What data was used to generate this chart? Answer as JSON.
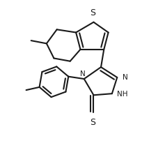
{
  "bg_color": "#ffffff",
  "line_color": "#1a1a1a",
  "line_width": 1.5,
  "font_size": 7.5,
  "figsize": [
    2.14,
    2.26
  ],
  "dpi": 100,
  "xlim": [
    0.0,
    10.0
  ],
  "ylim": [
    0.0,
    10.5
  ]
}
